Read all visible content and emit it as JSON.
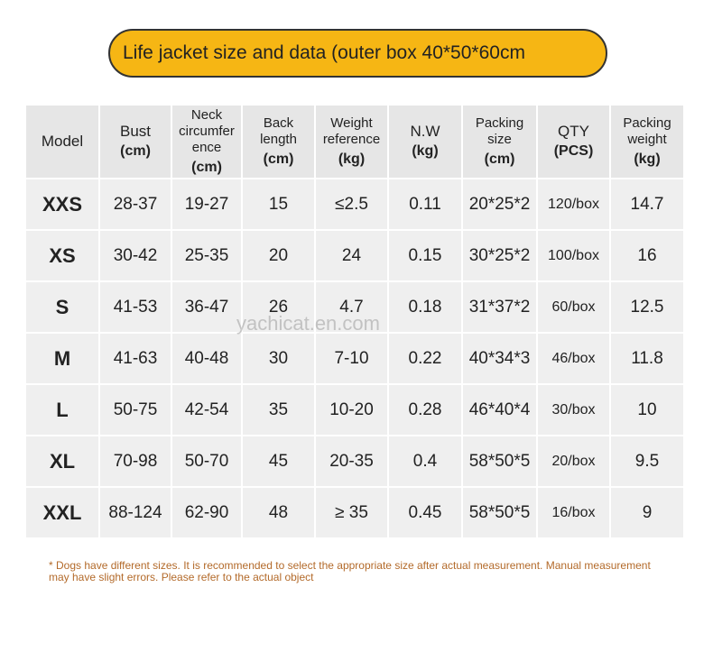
{
  "title": "Life jacket size and data (outer box 40*50*60cm",
  "table": {
    "header": [
      [
        "Model"
      ],
      [
        "Bust",
        "(cm)"
      ],
      [
        "Neck",
        "circumfer",
        "ence",
        "(cm)"
      ],
      [
        "Back",
        "length",
        "(cm)"
      ],
      [
        "Weight",
        "reference",
        "(kg)"
      ],
      [
        "N.W",
        "(kg)"
      ],
      [
        "Packing",
        "size",
        "(cm)"
      ],
      [
        "QTY",
        "(PCS)"
      ],
      [
        "Packing",
        "weight",
        "(kg)"
      ]
    ],
    "rows": [
      [
        "XXS",
        "28-37",
        "19-27",
        "15",
        "≤2.5",
        "0.11",
        "20*25*2",
        "120/box",
        "14.7"
      ],
      [
        "XS",
        "30-42",
        "25-35",
        "20",
        "24",
        "0.15",
        "30*25*2",
        "100/box",
        "16"
      ],
      [
        "S",
        "41-53",
        "36-47",
        "26",
        "4.7",
        "0.18",
        "31*37*2",
        "60/box",
        "12.5"
      ],
      [
        "M",
        "41-63",
        "40-48",
        "30",
        "7-10",
        "0.22",
        "40*34*3",
        "46/box",
        "11.8"
      ],
      [
        "L",
        "50-75",
        "42-54",
        "35",
        "10-20",
        "0.28",
        "46*40*4",
        "30/box",
        "10"
      ],
      [
        "XL",
        "70-98",
        "50-70",
        "45",
        "20-35",
        "0.4",
        "58*50*5",
        "20/box",
        "9.5"
      ],
      [
        "XXL",
        "88-124",
        "62-90",
        "48",
        "≥ 35",
        "0.45",
        "58*50*5",
        "16/box",
        "9"
      ]
    ]
  },
  "watermark": "yachicat.en.com",
  "footnote": "* Dogs have different sizes. It is recommended to select the appropriate size after actual measurement. Manual measurement may have slight errors. Please refer to the actual object"
}
